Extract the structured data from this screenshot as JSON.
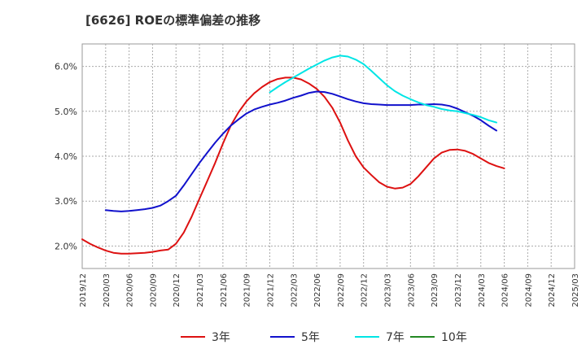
{
  "chart_data": {
    "type": "line",
    "title": "[6626]  ROEの標準偏差の推移",
    "xlabel": "",
    "ylabel": "",
    "ylim": [
      1.5,
      6.5
    ],
    "yticks": [
      2.0,
      3.0,
      4.0,
      5.0,
      6.0
    ],
    "ytick_labels": [
      "2.0%",
      "3.0%",
      "4.0%",
      "5.0%",
      "6.0%"
    ],
    "xtick_labels": [
      "2019/12",
      "2020/03",
      "2020/06",
      "2020/09",
      "2020/12",
      "2021/03",
      "2021/06",
      "2021/09",
      "2021/12",
      "2022/03",
      "2022/06",
      "2022/09",
      "2022/12",
      "2023/03",
      "2023/06",
      "2023/09",
      "2023/12",
      "2024/03",
      "2024/06",
      "2024/09",
      "2024/12",
      "2025/03"
    ],
    "grid": true,
    "legend_position": "bottom",
    "series": [
      {
        "name": "3年",
        "color": "#dd1111",
        "points": [
          [
            0,
            2.15
          ],
          [
            1,
            2.05
          ],
          [
            2,
            1.97
          ],
          [
            3,
            1.9
          ],
          [
            4,
            1.85
          ],
          [
            5,
            1.83
          ],
          [
            6,
            1.83
          ],
          [
            7,
            1.84
          ],
          [
            8,
            1.85
          ],
          [
            9,
            1.87
          ],
          [
            10,
            1.9
          ],
          [
            11,
            1.92
          ],
          [
            12,
            2.05
          ],
          [
            13,
            2.3
          ],
          [
            14,
            2.65
          ],
          [
            15,
            3.05
          ],
          [
            16,
            3.45
          ],
          [
            17,
            3.85
          ],
          [
            18,
            4.28
          ],
          [
            19,
            4.68
          ],
          [
            20,
            4.98
          ],
          [
            21,
            5.22
          ],
          [
            22,
            5.4
          ],
          [
            23,
            5.54
          ],
          [
            24,
            5.65
          ],
          [
            25,
            5.72
          ],
          [
            26,
            5.75
          ],
          [
            27,
            5.75
          ],
          [
            28,
            5.71
          ],
          [
            29,
            5.62
          ],
          [
            30,
            5.5
          ],
          [
            31,
            5.32
          ],
          [
            32,
            5.08
          ],
          [
            33,
            4.75
          ],
          [
            34,
            4.35
          ],
          [
            35,
            4.0
          ],
          [
            36,
            3.75
          ],
          [
            37,
            3.58
          ],
          [
            38,
            3.42
          ],
          [
            39,
            3.32
          ],
          [
            40,
            3.28
          ],
          [
            41,
            3.3
          ],
          [
            42,
            3.38
          ],
          [
            43,
            3.55
          ],
          [
            44,
            3.75
          ],
          [
            45,
            3.95
          ],
          [
            46,
            4.08
          ],
          [
            47,
            4.14
          ],
          [
            48,
            4.15
          ],
          [
            49,
            4.12
          ],
          [
            50,
            4.05
          ],
          [
            51,
            3.95
          ],
          [
            52,
            3.85
          ],
          [
            53,
            3.78
          ],
          [
            54,
            3.73
          ]
        ]
      },
      {
        "name": "5年",
        "color": "#1111cc",
        "points": [
          [
            3,
            2.8
          ],
          [
            4,
            2.78
          ],
          [
            5,
            2.77
          ],
          [
            6,
            2.78
          ],
          [
            7,
            2.8
          ],
          [
            8,
            2.82
          ],
          [
            9,
            2.85
          ],
          [
            10,
            2.9
          ],
          [
            11,
            3.0
          ],
          [
            12,
            3.12
          ],
          [
            13,
            3.35
          ],
          [
            14,
            3.6
          ],
          [
            15,
            3.85
          ],
          [
            16,
            4.08
          ],
          [
            17,
            4.3
          ],
          [
            18,
            4.5
          ],
          [
            19,
            4.68
          ],
          [
            20,
            4.82
          ],
          [
            21,
            4.95
          ],
          [
            22,
            5.04
          ],
          [
            23,
            5.1
          ],
          [
            24,
            5.15
          ],
          [
            25,
            5.19
          ],
          [
            26,
            5.24
          ],
          [
            27,
            5.3
          ],
          [
            28,
            5.35
          ],
          [
            29,
            5.41
          ],
          [
            30,
            5.44
          ],
          [
            31,
            5.43
          ],
          [
            32,
            5.39
          ],
          [
            33,
            5.33
          ],
          [
            34,
            5.27
          ],
          [
            35,
            5.22
          ],
          [
            36,
            5.18
          ],
          [
            37,
            5.16
          ],
          [
            38,
            5.15
          ],
          [
            39,
            5.14
          ],
          [
            40,
            5.14
          ],
          [
            41,
            5.14
          ],
          [
            42,
            5.14
          ],
          [
            43,
            5.15
          ],
          [
            44,
            5.15
          ],
          [
            45,
            5.16
          ],
          [
            46,
            5.15
          ],
          [
            47,
            5.12
          ],
          [
            48,
            5.06
          ],
          [
            49,
            4.98
          ],
          [
            50,
            4.9
          ],
          [
            51,
            4.8
          ],
          [
            52,
            4.68
          ],
          [
            53,
            4.57
          ]
        ]
      },
      {
        "name": "7年",
        "color": "#00e5e5",
        "points": [
          [
            24,
            5.42
          ],
          [
            25,
            5.54
          ],
          [
            26,
            5.65
          ],
          [
            27,
            5.75
          ],
          [
            28,
            5.85
          ],
          [
            29,
            5.95
          ],
          [
            30,
            6.04
          ],
          [
            31,
            6.13
          ],
          [
            32,
            6.2
          ],
          [
            33,
            6.24
          ],
          [
            34,
            6.22
          ],
          [
            35,
            6.15
          ],
          [
            36,
            6.05
          ],
          [
            37,
            5.9
          ],
          [
            38,
            5.74
          ],
          [
            39,
            5.58
          ],
          [
            40,
            5.45
          ],
          [
            41,
            5.35
          ],
          [
            42,
            5.27
          ],
          [
            43,
            5.2
          ],
          [
            44,
            5.14
          ],
          [
            45,
            5.1
          ],
          [
            46,
            5.05
          ],
          [
            47,
            5.02
          ],
          [
            48,
            5.0
          ],
          [
            49,
            4.96
          ],
          [
            50,
            4.92
          ],
          [
            51,
            4.87
          ],
          [
            52,
            4.8
          ],
          [
            53,
            4.75
          ]
        ]
      },
      {
        "name": "10年",
        "color": "#228822",
        "points": []
      }
    ]
  }
}
